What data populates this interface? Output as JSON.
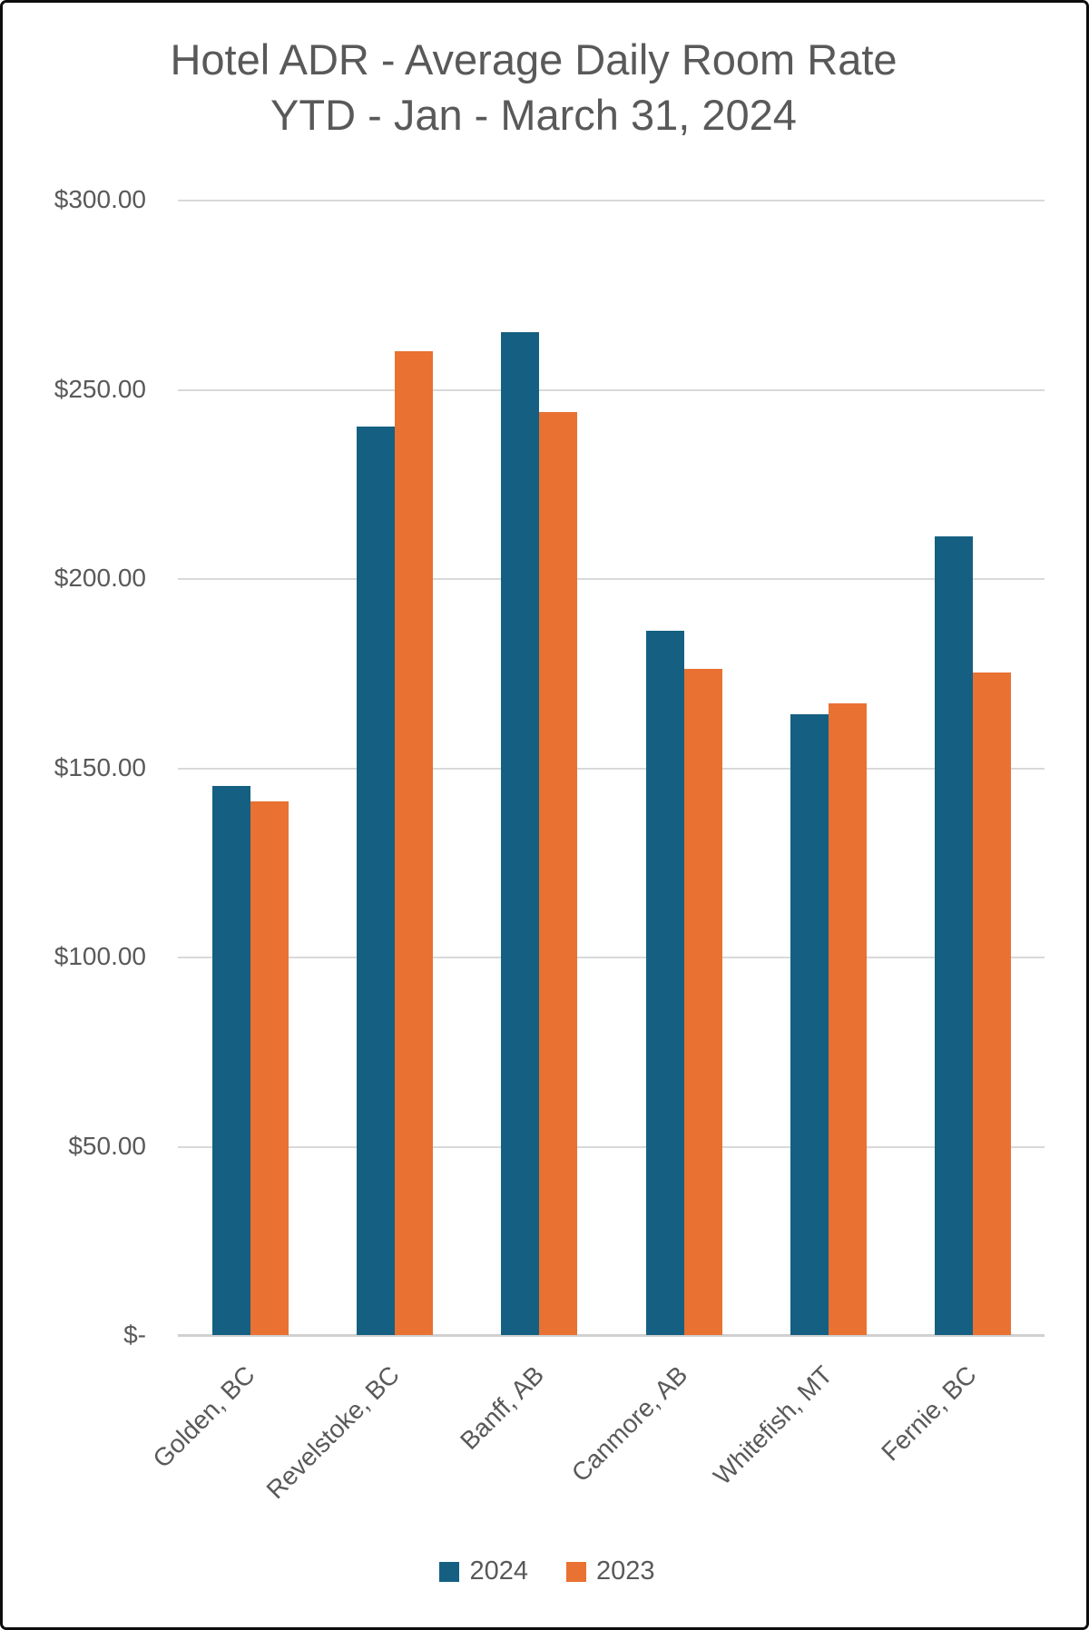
{
  "title": {
    "line1": "Hotel ADR - Average Daily Room Rate",
    "line2": "YTD - Jan - March 31, 2024"
  },
  "chart_data": {
    "type": "bar",
    "title": "Hotel ADR - Average Daily Room Rate YTD - Jan - March 31, 2024",
    "categories": [
      "Golden, BC",
      "Revelstoke, BC",
      "Banff, AB",
      "Canmore, AB",
      "Whitefish, MT",
      "Fernie, BC"
    ],
    "series": [
      {
        "name": "2024",
        "color": "#156082",
        "values": [
          145,
          240,
          265,
          186,
          164,
          211
        ]
      },
      {
        "name": "2023",
        "color": "#E97132",
        "values": [
          141,
          260,
          244,
          176,
          167,
          175
        ]
      }
    ],
    "xlabel": "",
    "ylabel": "",
    "ylim": [
      0,
      300
    ],
    "ytick_step": 50,
    "ytick_labels": [
      "$-",
      "$50.00",
      "$100.00",
      "$150.00",
      "$200.00",
      "$250.00",
      "$300.00"
    ],
    "grid": true,
    "legend_position": "bottom"
  },
  "colors": {
    "series_2024": "#156082",
    "series_2023": "#E97132",
    "text": "#595959",
    "gridline": "#d9d9d9",
    "axis_line": "#d0d0d0",
    "frame_border": "#0d0d0d",
    "background": "#ffffff"
  }
}
